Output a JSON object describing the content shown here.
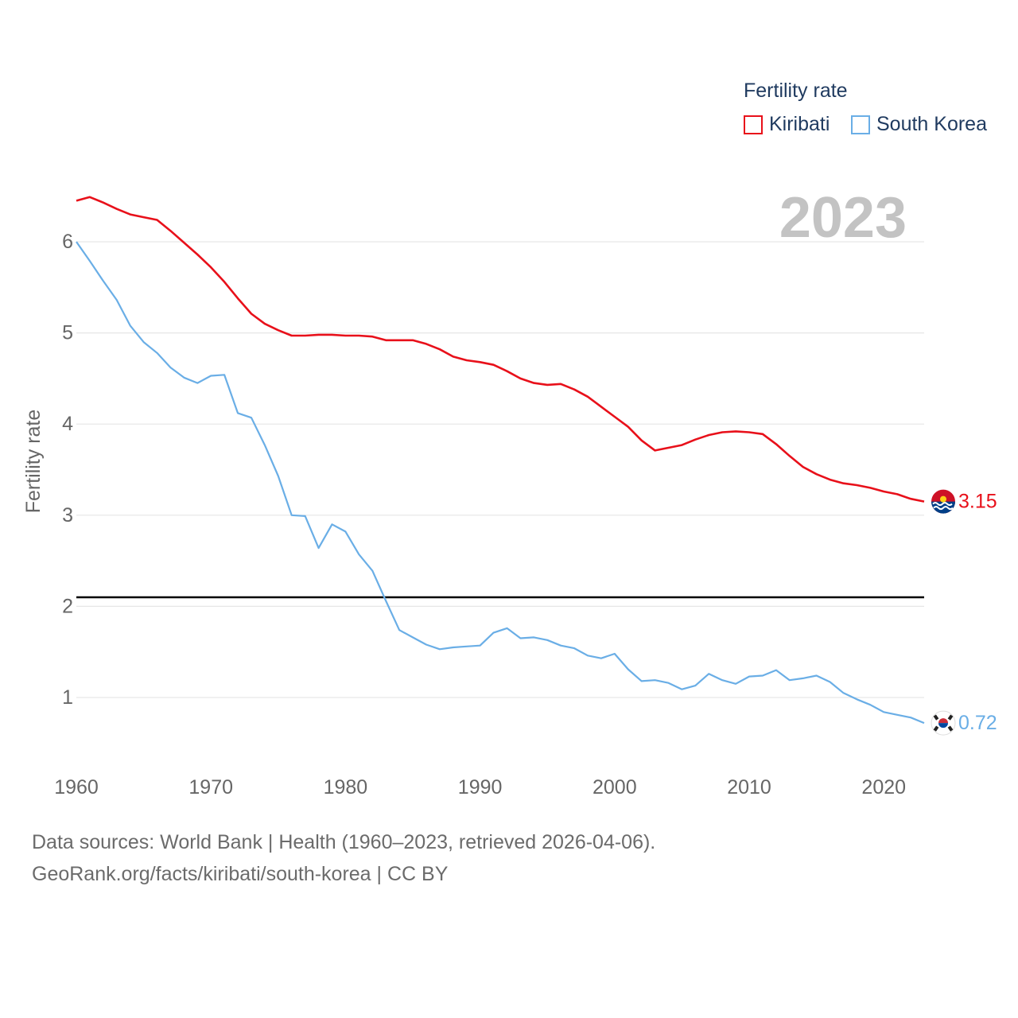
{
  "chart_data": {
    "type": "line",
    "title": "",
    "current_year": "2023",
    "xlabel": "",
    "ylabel": "Fertility rate",
    "xlim": [
      1960,
      2023
    ],
    "ylim": [
      0.5,
      6.5
    ],
    "x_ticks": [
      "1960",
      "1970",
      "1980",
      "1990",
      "2000",
      "2010",
      "2020"
    ],
    "y_ticks": [
      "1",
      "2",
      "3",
      "4",
      "5",
      "6"
    ],
    "reference_line": 2.1,
    "legend": {
      "title": "Fertility rate",
      "position": "top-right"
    },
    "x": [
      1960,
      1961,
      1962,
      1963,
      1964,
      1965,
      1966,
      1967,
      1968,
      1969,
      1970,
      1971,
      1972,
      1973,
      1974,
      1975,
      1976,
      1977,
      1978,
      1979,
      1980,
      1981,
      1982,
      1983,
      1984,
      1985,
      1986,
      1987,
      1988,
      1989,
      1990,
      1991,
      1992,
      1993,
      1994,
      1995,
      1996,
      1997,
      1998,
      1999,
      2000,
      2001,
      2002,
      2003,
      2004,
      2005,
      2006,
      2007,
      2008,
      2009,
      2010,
      2011,
      2012,
      2013,
      2014,
      2015,
      2016,
      2017,
      2018,
      2019,
      2020,
      2021,
      2022,
      2023
    ],
    "series": [
      {
        "name": "Kiribati",
        "color": "#e8101a",
        "end_label": "3.15",
        "values": [
          6.45,
          6.49,
          6.43,
          6.36,
          6.3,
          6.27,
          6.24,
          6.12,
          5.99,
          5.86,
          5.72,
          5.56,
          5.38,
          5.21,
          5.1,
          5.03,
          4.97,
          4.97,
          4.98,
          4.98,
          4.97,
          4.97,
          4.96,
          4.92,
          4.92,
          4.92,
          4.88,
          4.82,
          4.74,
          4.7,
          4.68,
          4.65,
          4.58,
          4.5,
          4.45,
          4.43,
          4.44,
          4.38,
          4.3,
          4.19,
          4.08,
          3.97,
          3.82,
          3.71,
          3.74,
          3.77,
          3.83,
          3.88,
          3.91,
          3.92,
          3.91,
          3.89,
          3.78,
          3.65,
          3.53,
          3.45,
          3.39,
          3.35,
          3.33,
          3.3,
          3.26,
          3.23,
          3.18,
          3.15
        ]
      },
      {
        "name": "South Korea",
        "color": "#6aaee6",
        "end_label": "0.72",
        "values": [
          6.0,
          5.79,
          5.57,
          5.36,
          5.08,
          4.9,
          4.78,
          4.62,
          4.51,
          4.45,
          4.53,
          4.54,
          4.12,
          4.07,
          3.77,
          3.43,
          3.0,
          2.99,
          2.64,
          2.9,
          2.82,
          2.57,
          2.39,
          2.06,
          1.74,
          1.66,
          1.58,
          1.53,
          1.55,
          1.56,
          1.57,
          1.71,
          1.76,
          1.65,
          1.66,
          1.63,
          1.57,
          1.54,
          1.46,
          1.43,
          1.48,
          1.31,
          1.18,
          1.19,
          1.16,
          1.09,
          1.13,
          1.26,
          1.19,
          1.15,
          1.23,
          1.24,
          1.3,
          1.19,
          1.21,
          1.24,
          1.17,
          1.05,
          0.98,
          0.92,
          0.84,
          0.81,
          0.78,
          0.72
        ]
      }
    ]
  },
  "footer": {
    "line1": "Data sources: World Bank | Health (1960–2023, retrieved 2026-04-06).",
    "line2": "GeoRank.org/facts/kiribati/south-korea | CC BY"
  }
}
